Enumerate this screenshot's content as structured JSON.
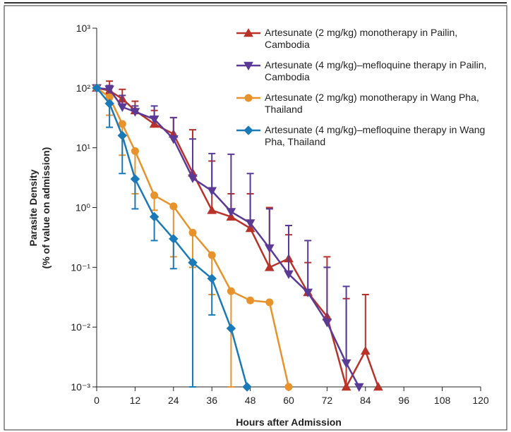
{
  "chart_data": {
    "type": "line",
    "xlabel": "Hours after Admission",
    "ylabel": [
      "Parasite Density",
      "(% of value on admission)"
    ],
    "xlim": [
      0,
      120
    ],
    "xticks": [
      0,
      12,
      24,
      36,
      48,
      60,
      72,
      84,
      96,
      108,
      120
    ],
    "ylim": [
      0.001,
      1000
    ],
    "log_y": true,
    "yticks": [
      {
        "value": 0.001,
        "label": "10⁻³"
      },
      {
        "value": 0.01,
        "label": "10⁻²"
      },
      {
        "value": 0.1,
        "label": "10⁻¹"
      },
      {
        "value": 1,
        "label": "10⁰"
      },
      {
        "value": 10,
        "label": "10¹"
      },
      {
        "value": 100,
        "label": "10²"
      },
      {
        "value": 1000,
        "label": "10³"
      }
    ],
    "legend": "top-right",
    "series": [
      {
        "name": "Artesunate (2 mg/kg) monotherapy in Pailin, Cambodia",
        "color": "#b8322a",
        "marker": "triangle-up",
        "x": [
          0,
          4,
          8,
          12,
          18,
          24,
          30,
          36,
          42,
          48,
          54,
          60,
          66,
          72,
          78,
          84,
          88
        ],
        "values": [
          100,
          90,
          66,
          42,
          25,
          17,
          3.8,
          0.9,
          0.7,
          0.45,
          0.1,
          0.14,
          0.038,
          0.015,
          0.001,
          0.004,
          0.001
        ],
        "upper": [
          null,
          130,
          95,
          60,
          42,
          32,
          20,
          6,
          1.7,
          1.7,
          1,
          0.35,
          0.12,
          0.15,
          0.03,
          0.035,
          null
        ]
      },
      {
        "name": "Artesunate (4 mg/kg)–mefloquine therapy in Pailin, Cambodia",
        "color": "#5b3a96",
        "marker": "triangle-down",
        "x": [
          0,
          4,
          8,
          12,
          18,
          24,
          30,
          36,
          42,
          48,
          54,
          60,
          66,
          72,
          78,
          82
        ],
        "values": [
          100,
          95,
          48,
          40,
          30,
          14,
          3.1,
          1.9,
          0.85,
          0.55,
          0.21,
          0.077,
          0.038,
          0.012,
          0.0025,
          0.001
        ],
        "upper": [
          null,
          110,
          75,
          50,
          50,
          32,
          14,
          8,
          7.8,
          3.7,
          0.95,
          0.5,
          0.28,
          0.1,
          0.048,
          null
        ]
      },
      {
        "name": "Artesunate (2 mg/kg) monotherapy in Wang Pha, Thailand",
        "color": "#e8922c",
        "marker": "circle",
        "x": [
          0,
          4,
          8,
          12,
          18,
          24,
          30,
          36,
          42,
          48,
          54,
          60
        ],
        "values": [
          100,
          70,
          25,
          8.8,
          1.6,
          1.05,
          0.38,
          0.16,
          0.04,
          0.028,
          0.026,
          0.001
        ],
        "lower": [
          null,
          35,
          7.5,
          1.7,
          0.9,
          0.15,
          0.1,
          0.035,
          0.001,
          null,
          null,
          null
        ]
      },
      {
        "name": "Artesunate (4 mg/kg)–mefloquine therapy in Wang Pha, Thailand",
        "color": "#1a7ab8",
        "marker": "diamond",
        "x": [
          0,
          4,
          8,
          12,
          18,
          24,
          30,
          36,
          42,
          47
        ],
        "values": [
          100,
          55,
          16,
          3,
          0.7,
          0.3,
          0.12,
          0.065,
          0.0095,
          0.001
        ],
        "lower": [
          null,
          22,
          3.7,
          0.95,
          0.28,
          0.095,
          0.001,
          0.016,
          null,
          null
        ]
      }
    ]
  }
}
